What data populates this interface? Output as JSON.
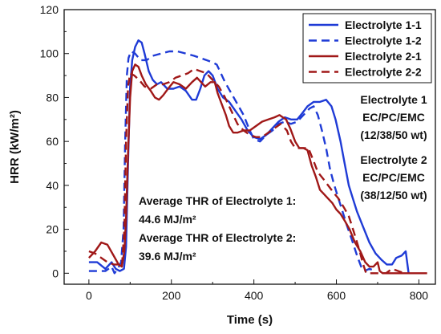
{
  "chart_data": {
    "type": "line",
    "xlabel": "Time (s)",
    "ylabel": "HRR (kW/m²)",
    "xlim": [
      -60,
      840
    ],
    "ylim": [
      -5,
      120
    ],
    "xticks": [
      "0",
      "200",
      "400",
      "600",
      "800"
    ],
    "yticks": [
      "0",
      "20",
      "40",
      "60",
      "80",
      "100",
      "120"
    ],
    "legend_position": "top-right",
    "series": [
      {
        "name": "Electrolyte 1-1",
        "color": "#1f3bd6",
        "dash": "solid",
        "points": [
          [
            0,
            5
          ],
          [
            20,
            5
          ],
          [
            40,
            2
          ],
          [
            55,
            5
          ],
          [
            65,
            2
          ],
          [
            75,
            1
          ],
          [
            85,
            2
          ],
          [
            90,
            12
          ],
          [
            95,
            50
          ],
          [
            100,
            85
          ],
          [
            105,
            97
          ],
          [
            112,
            103
          ],
          [
            120,
            106
          ],
          [
            128,
            105
          ],
          [
            135,
            100
          ],
          [
            145,
            92
          ],
          [
            155,
            88
          ],
          [
            165,
            86
          ],
          [
            175,
            87
          ],
          [
            190,
            84
          ],
          [
            205,
            84
          ],
          [
            220,
            85
          ],
          [
            235,
            83
          ],
          [
            250,
            79
          ],
          [
            260,
            79
          ],
          [
            270,
            84
          ],
          [
            280,
            90
          ],
          [
            290,
            92
          ],
          [
            300,
            90
          ],
          [
            312,
            84
          ],
          [
            325,
            80
          ],
          [
            340,
            78
          ],
          [
            355,
            74
          ],
          [
            370,
            70
          ],
          [
            385,
            65
          ],
          [
            400,
            62
          ],
          [
            415,
            61
          ],
          [
            430,
            63
          ],
          [
            445,
            66
          ],
          [
            460,
            69
          ],
          [
            475,
            71
          ],
          [
            490,
            70
          ],
          [
            505,
            70
          ],
          [
            518,
            73
          ],
          [
            530,
            76
          ],
          [
            545,
            78
          ],
          [
            560,
            78
          ],
          [
            575,
            79
          ],
          [
            588,
            76
          ],
          [
            598,
            70
          ],
          [
            610,
            60
          ],
          [
            620,
            50
          ],
          [
            630,
            40
          ],
          [
            640,
            34
          ],
          [
            650,
            28
          ],
          [
            665,
            21
          ],
          [
            680,
            14
          ],
          [
            695,
            9
          ],
          [
            710,
            6
          ],
          [
            722,
            4
          ],
          [
            735,
            4
          ],
          [
            745,
            7
          ],
          [
            758,
            8
          ],
          [
            768,
            10
          ],
          [
            775,
            0
          ]
        ]
      },
      {
        "name": "Electrolyte 1-2",
        "color": "#1f3bd6",
        "dash": "dashed",
        "points": [
          [
            0,
            1
          ],
          [
            20,
            1
          ],
          [
            40,
            1
          ],
          [
            55,
            3
          ],
          [
            62,
            0
          ],
          [
            70,
            2
          ],
          [
            78,
            5
          ],
          [
            84,
            20
          ],
          [
            88,
            60
          ],
          [
            92,
            90
          ],
          [
            96,
            98
          ],
          [
            102,
            101
          ],
          [
            112,
            100
          ],
          [
            125,
            97
          ],
          [
            140,
            97
          ],
          [
            155,
            99
          ],
          [
            175,
            100
          ],
          [
            195,
            101
          ],
          [
            215,
            101
          ],
          [
            235,
            100
          ],
          [
            255,
            99
          ],
          [
            270,
            98
          ],
          [
            285,
            97
          ],
          [
            300,
            96
          ],
          [
            310,
            95
          ],
          [
            320,
            91
          ],
          [
            330,
            87
          ],
          [
            345,
            82
          ],
          [
            360,
            77
          ],
          [
            375,
            72
          ],
          [
            390,
            65
          ],
          [
            400,
            61
          ],
          [
            415,
            60
          ],
          [
            430,
            63
          ],
          [
            445,
            65
          ],
          [
            460,
            68
          ],
          [
            475,
            69
          ],
          [
            490,
            68
          ],
          [
            505,
            69
          ],
          [
            520,
            72
          ],
          [
            535,
            75
          ],
          [
            545,
            76
          ],
          [
            555,
            72
          ],
          [
            565,
            65
          ],
          [
            575,
            57
          ],
          [
            585,
            47
          ],
          [
            595,
            40
          ],
          [
            605,
            34
          ],
          [
            615,
            28
          ],
          [
            625,
            22
          ],
          [
            638,
            15
          ],
          [
            650,
            8
          ],
          [
            660,
            3
          ],
          [
            668,
            1
          ],
          [
            680,
            2
          ],
          [
            695,
            1
          ]
        ]
      },
      {
        "name": "Electrolyte 2-1",
        "color": "#a01818",
        "dash": "solid",
        "points": [
          [
            0,
            7
          ],
          [
            15,
            10
          ],
          [
            30,
            14
          ],
          [
            45,
            13
          ],
          [
            60,
            8
          ],
          [
            72,
            4
          ],
          [
            80,
            3
          ],
          [
            86,
            10
          ],
          [
            90,
            25
          ],
          [
            95,
            55
          ],
          [
            100,
            80
          ],
          [
            105,
            92
          ],
          [
            112,
            95
          ],
          [
            120,
            94
          ],
          [
            128,
            90
          ],
          [
            138,
            86
          ],
          [
            150,
            83
          ],
          [
            160,
            80
          ],
          [
            170,
            79
          ],
          [
            180,
            81
          ],
          [
            192,
            84
          ],
          [
            205,
            87
          ],
          [
            220,
            86
          ],
          [
            235,
            84
          ],
          [
            250,
            87
          ],
          [
            262,
            89
          ],
          [
            272,
            87
          ],
          [
            282,
            85
          ],
          [
            295,
            87
          ],
          [
            305,
            87
          ],
          [
            312,
            82
          ],
          [
            322,
            77
          ],
          [
            332,
            72
          ],
          [
            340,
            67
          ],
          [
            350,
            64
          ],
          [
            360,
            64
          ],
          [
            375,
            65
          ],
          [
            390,
            65
          ],
          [
            405,
            67
          ],
          [
            420,
            69
          ],
          [
            435,
            70
          ],
          [
            450,
            71
          ],
          [
            462,
            72
          ],
          [
            470,
            71
          ],
          [
            478,
            70
          ],
          [
            488,
            66
          ],
          [
            500,
            60
          ],
          [
            510,
            57
          ],
          [
            520,
            57
          ],
          [
            530,
            56
          ],
          [
            540,
            49
          ],
          [
            550,
            44
          ],
          [
            560,
            38
          ],
          [
            570,
            36
          ],
          [
            580,
            34
          ],
          [
            590,
            32
          ],
          [
            600,
            29
          ],
          [
            610,
            27
          ],
          [
            620,
            24
          ],
          [
            632,
            20
          ],
          [
            645,
            14
          ],
          [
            658,
            10
          ],
          [
            670,
            5
          ],
          [
            680,
            3
          ],
          [
            690,
            3
          ],
          [
            700,
            5
          ],
          [
            705,
            1
          ],
          [
            712,
            0
          ],
          [
            730,
            0
          ],
          [
            760,
            0
          ],
          [
            790,
            0
          ],
          [
            820,
            0
          ]
        ]
      },
      {
        "name": "Electrolyte 2-2",
        "color": "#a01818",
        "dash": "dashed",
        "points": [
          [
            0,
            10
          ],
          [
            15,
            9
          ],
          [
            30,
            7
          ],
          [
            45,
            5
          ],
          [
            60,
            4
          ],
          [
            72,
            4
          ],
          [
            80,
            3
          ],
          [
            86,
            20
          ],
          [
            90,
            60
          ],
          [
            95,
            85
          ],
          [
            100,
            91
          ],
          [
            110,
            90
          ],
          [
            122,
            88
          ],
          [
            135,
            85
          ],
          [
            150,
            84
          ],
          [
            165,
            86
          ],
          [
            180,
            86
          ],
          [
            195,
            87
          ],
          [
            210,
            89
          ],
          [
            225,
            90
          ],
          [
            240,
            91
          ],
          [
            255,
            93
          ],
          [
            270,
            92
          ],
          [
            285,
            91
          ],
          [
            300,
            88
          ],
          [
            315,
            85
          ],
          [
            330,
            80
          ],
          [
            345,
            74
          ],
          [
            360,
            68
          ],
          [
            375,
            65
          ],
          [
            390,
            63
          ],
          [
            405,
            62
          ],
          [
            420,
            62
          ],
          [
            435,
            64
          ],
          [
            450,
            66
          ],
          [
            465,
            68
          ],
          [
            480,
            65
          ],
          [
            490,
            60
          ],
          [
            500,
            57
          ],
          [
            510,
            57
          ],
          [
            520,
            57
          ],
          [
            532,
            57
          ],
          [
            545,
            51
          ],
          [
            555,
            46
          ],
          [
            568,
            43
          ],
          [
            580,
            40
          ],
          [
            592,
            37
          ],
          [
            605,
            34
          ],
          [
            618,
            30
          ],
          [
            630,
            26
          ],
          [
            642,
            19
          ],
          [
            655,
            11
          ],
          [
            665,
            4
          ],
          [
            672,
            0
          ],
          [
            680,
            0
          ],
          [
            695,
            0
          ],
          [
            710,
            0
          ],
          [
            720,
            0
          ],
          [
            735,
            2
          ],
          [
            750,
            1
          ],
          [
            765,
            0
          ]
        ]
      }
    ],
    "annotations": {
      "electrolyte1": {
        "title": "Electrolyte 1",
        "composition": "EC/PC/EMC",
        "ratio": "(12/38/50 wt)"
      },
      "electrolyte2": {
        "title": "Electrolyte 2",
        "composition": "EC/PC/EMC",
        "ratio": "(38/12/50 wt)"
      },
      "thr1": {
        "label": "Average THR of  Electrolyte 1:",
        "value": "44.6 MJ/m²"
      },
      "thr2": {
        "label": "Average THR of  Electrolyte 2:",
        "value": "39.6 MJ/m²"
      }
    }
  }
}
